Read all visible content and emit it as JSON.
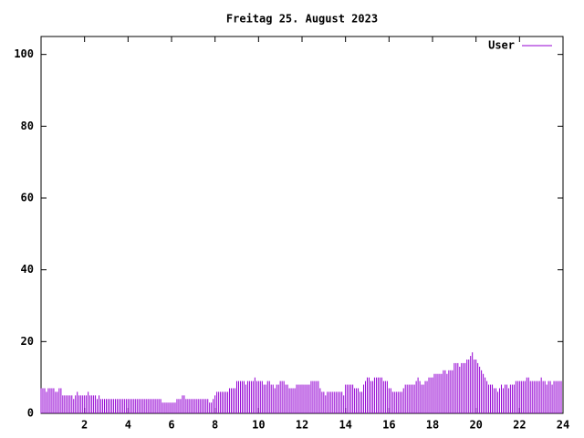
{
  "chart_data": {
    "type": "impulses",
    "title": "Freitag 25. August 2023",
    "xlim": [
      0,
      24
    ],
    "xticks": [
      2,
      4,
      6,
      8,
      10,
      12,
      14,
      16,
      18,
      20,
      22,
      24
    ],
    "ylim": [
      0,
      105
    ],
    "yticks": [
      0,
      20,
      40,
      60,
      80,
      100
    ],
    "grid": false,
    "legend": "top-right",
    "x": [
      0,
      0.083,
      0.167,
      0.25,
      0.333,
      0.417,
      0.5,
      0.583,
      0.667,
      0.75,
      0.833,
      0.917,
      1,
      1.083,
      1.167,
      1.25,
      1.333,
      1.417,
      1.5,
      1.583,
      1.667,
      1.75,
      1.833,
      1.917,
      2,
      2.083,
      2.167,
      2.25,
      2.333,
      2.417,
      2.5,
      2.583,
      2.667,
      2.75,
      2.833,
      2.917,
      3,
      3.083,
      3.167,
      3.25,
      3.333,
      3.417,
      3.5,
      3.583,
      3.667,
      3.75,
      3.833,
      3.917,
      4,
      4.083,
      4.167,
      4.25,
      4.333,
      4.417,
      4.5,
      4.583,
      4.667,
      4.75,
      4.833,
      4.917,
      5,
      5.083,
      5.167,
      5.25,
      5.333,
      5.417,
      5.5,
      5.583,
      5.667,
      5.75,
      5.833,
      5.917,
      6,
      6.083,
      6.167,
      6.25,
      6.333,
      6.417,
      6.5,
      6.583,
      6.667,
      6.75,
      6.833,
      6.917,
      7,
      7.083,
      7.167,
      7.25,
      7.333,
      7.417,
      7.5,
      7.583,
      7.667,
      7.75,
      7.833,
      7.917,
      8,
      8.083,
      8.167,
      8.25,
      8.333,
      8.417,
      8.5,
      8.583,
      8.667,
      8.75,
      8.833,
      8.917,
      9,
      9.083,
      9.167,
      9.25,
      9.333,
      9.417,
      9.5,
      9.583,
      9.667,
      9.75,
      9.833,
      9.917,
      10,
      10.083,
      10.167,
      10.25,
      10.333,
      10.417,
      10.5,
      10.583,
      10.667,
      10.75,
      10.833,
      10.917,
      11,
      11.083,
      11.167,
      11.25,
      11.333,
      11.417,
      11.5,
      11.583,
      11.667,
      11.75,
      11.833,
      11.917,
      12,
      12.083,
      12.167,
      12.25,
      12.333,
      12.417,
      12.5,
      12.583,
      12.667,
      12.75,
      12.833,
      12.917,
      13,
      13.083,
      13.167,
      13.25,
      13.333,
      13.417,
      13.5,
      13.583,
      13.667,
      13.75,
      13.833,
      13.917,
      14,
      14.083,
      14.167,
      14.25,
      14.333,
      14.417,
      14.5,
      14.583,
      14.667,
      14.75,
      14.833,
      14.917,
      15,
      15.083,
      15.167,
      15.25,
      15.333,
      15.417,
      15.5,
      15.583,
      15.667,
      15.75,
      15.833,
      15.917,
      16,
      16.083,
      16.167,
      16.25,
      16.333,
      16.417,
      16.5,
      16.583,
      16.667,
      16.75,
      16.833,
      16.917,
      17,
      17.083,
      17.167,
      17.25,
      17.333,
      17.417,
      17.5,
      17.583,
      17.667,
      17.75,
      17.833,
      17.917,
      18,
      18.083,
      18.167,
      18.25,
      18.333,
      18.417,
      18.5,
      18.583,
      18.667,
      18.75,
      18.833,
      18.917,
      19,
      19.083,
      19.167,
      19.25,
      19.333,
      19.417,
      19.5,
      19.583,
      19.667,
      19.75,
      19.833,
      19.917,
      20,
      20.083,
      20.167,
      20.25,
      20.333,
      20.417,
      20.5,
      20.583,
      20.667,
      20.75,
      20.833,
      20.917,
      21,
      21.083,
      21.167,
      21.25,
      21.333,
      21.417,
      21.5,
      21.583,
      21.667,
      21.75,
      21.833,
      21.917,
      22,
      22.083,
      22.167,
      22.25,
      22.333,
      22.417,
      22.5,
      22.583,
      22.667,
      22.75,
      22.833,
      22.917,
      23,
      23.083,
      23.167,
      23.25,
      23.333,
      23.417,
      23.5,
      23.583,
      23.667,
      23.75,
      23.833,
      23.917
    ],
    "series": [
      {
        "name": "User",
        "color": "#9400d3",
        "values": [
          7,
          7,
          7,
          6,
          7,
          7,
          7,
          7,
          6,
          6,
          7,
          7,
          5,
          5,
          5,
          5,
          5,
          5,
          4,
          5,
          6,
          5,
          5,
          5,
          5,
          5,
          6,
          5,
          5,
          5,
          5,
          4,
          5,
          4,
          4,
          4,
          4,
          4,
          4,
          4,
          4,
          4,
          4,
          4,
          4,
          4,
          4,
          4,
          4,
          4,
          4,
          4,
          4,
          4,
          4,
          4,
          4,
          4,
          4,
          4,
          4,
          4,
          4,
          4,
          4,
          4,
          4,
          3,
          3,
          3,
          3,
          3,
          3,
          3,
          3,
          4,
          4,
          4,
          5,
          5,
          4,
          4,
          4,
          4,
          4,
          4,
          4,
          4,
          4,
          4,
          4,
          4,
          4,
          3,
          3,
          4,
          5,
          6,
          6,
          6,
          6,
          6,
          6,
          6,
          7,
          7,
          7,
          7,
          9,
          9,
          9,
          9,
          9,
          8,
          9,
          9,
          9,
          9,
          10,
          9,
          9,
          9,
          9,
          8,
          8,
          9,
          9,
          8,
          8,
          7,
          8,
          8,
          9,
          9,
          9,
          8,
          8,
          7,
          7,
          7,
          7,
          8,
          8,
          8,
          8,
          8,
          8,
          8,
          8,
          9,
          9,
          9,
          9,
          9,
          7,
          6,
          6,
          5,
          6,
          6,
          6,
          6,
          6,
          6,
          6,
          6,
          6,
          5,
          8,
          8,
          8,
          8,
          8,
          7,
          7,
          7,
          6,
          6,
          8,
          9,
          10,
          10,
          9,
          9,
          10,
          10,
          10,
          10,
          10,
          9,
          9,
          9,
          7,
          7,
          6,
          6,
          6,
          6,
          6,
          6,
          7,
          8,
          8,
          8,
          8,
          8,
          8,
          9,
          10,
          9,
          8,
          8,
          9,
          9,
          10,
          10,
          10,
          11,
          11,
          11,
          11,
          11,
          12,
          12,
          11,
          12,
          12,
          12,
          14,
          14,
          14,
          13,
          14,
          14,
          14,
          15,
          15,
          16,
          17,
          15,
          15,
          14,
          13,
          12,
          11,
          10,
          9,
          8,
          8,
          8,
          7,
          7,
          6,
          7,
          8,
          7,
          8,
          8,
          7,
          8,
          8,
          8,
          9,
          9,
          9,
          9,
          9,
          9,
          10,
          10,
          9,
          9,
          9,
          9,
          9,
          9,
          10,
          9,
          9,
          8,
          9,
          9,
          8,
          9,
          9,
          9,
          9,
          9
        ]
      }
    ]
  }
}
